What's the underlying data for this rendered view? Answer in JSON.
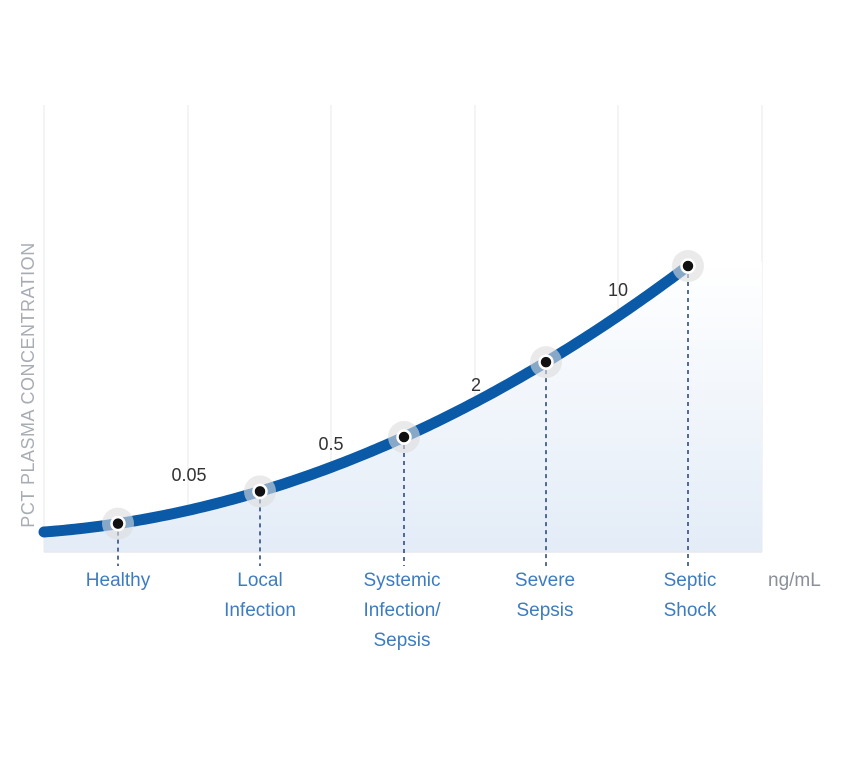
{
  "chart_data": {
    "type": "line",
    "title": "",
    "ylabel": "PCT PLASMA CONCENTRATION",
    "unit_label": "ng/mL",
    "categories": [
      [
        "Healthy"
      ],
      [
        "Local",
        "Infection"
      ],
      [
        "Systemic",
        "Infection/",
        "Sepsis"
      ],
      [
        "Severe",
        "Sepsis"
      ],
      [
        "Septic",
        "Shock"
      ]
    ],
    "threshold_labels": [
      "0.05",
      "0.5",
      "2",
      "10"
    ],
    "colors": {
      "curve": "#0a5aa8",
      "category_text": "#3d7cc0",
      "fill": "#e8eff8",
      "dash": "#1f3f7a"
    }
  }
}
